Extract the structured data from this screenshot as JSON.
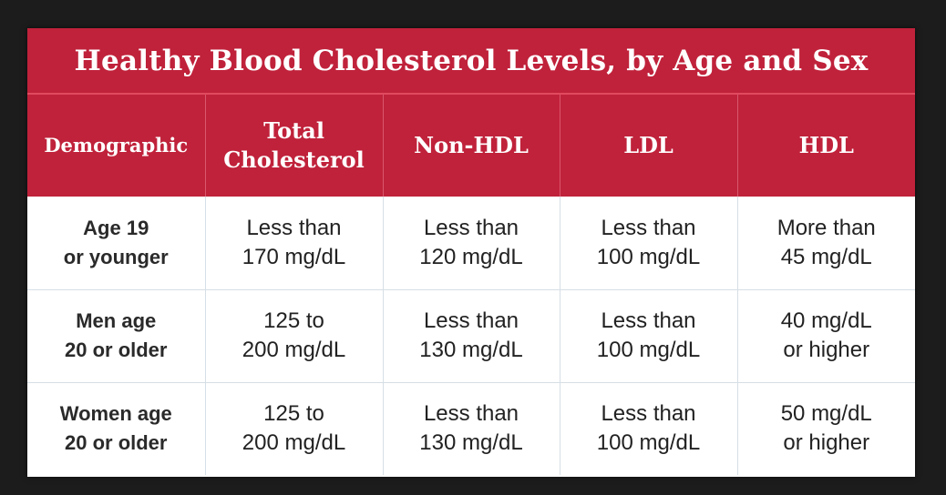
{
  "title": "Healthy Blood Cholesterol Levels, by Age and Sex",
  "headers": {
    "demographic": "Demographic",
    "total_line1": "Total",
    "total_line2": "Cholesterol",
    "non_hdl": "Non-HDL",
    "ldl": "LDL",
    "hdl": "HDL"
  },
  "rows": [
    {
      "demographic": [
        "Age 19",
        "or younger"
      ],
      "total": [
        "Less than",
        "170 mg/dL"
      ],
      "non_hdl": [
        "Less than",
        "120 mg/dL"
      ],
      "ldl": [
        "Less than",
        "100 mg/dL"
      ],
      "hdl": [
        "More than",
        "45 mg/dL"
      ]
    },
    {
      "demographic": [
        "Men age",
        "20 or older"
      ],
      "total": [
        "125 to",
        "200 mg/dL"
      ],
      "non_hdl": [
        "Less than",
        "130 mg/dL"
      ],
      "ldl": [
        "Less than",
        "100 mg/dL"
      ],
      "hdl": [
        "40 mg/dL",
        "or higher"
      ]
    },
    {
      "demographic": [
        "Women age",
        "20 or older"
      ],
      "total": [
        "125 to",
        "200 mg/dL"
      ],
      "non_hdl": [
        "Less than",
        "130 mg/dL"
      ],
      "ldl": [
        "Less than",
        "100 mg/dL"
      ],
      "hdl": [
        "50 mg/dL",
        "or higher"
      ]
    }
  ],
  "colors": {
    "header_red": "#c0223b",
    "grid_line": "#d6dfe6",
    "background": "#1c1c1c"
  }
}
